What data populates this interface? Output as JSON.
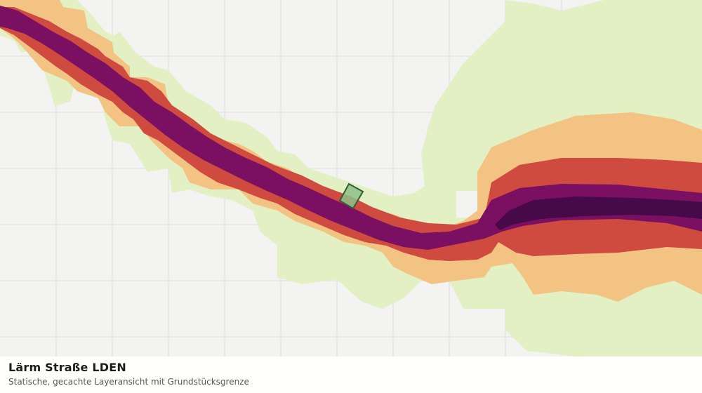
{
  "legend": {
    "title": "Lärm Straße LDEN",
    "subtitle": "Statische, gecachte Layeransicht mit Grundstücksgrenze"
  },
  "colors": {
    "background": "#f3f4f2",
    "grid": "#dcdedb",
    "band_outer": "#e2f0c4",
    "band_orange": "#f3c384",
    "band_red": "#cf4a3f",
    "band_purple": "#7b0f62",
    "band_darkest": "#450a47",
    "parcel_fill": "#8fbf88",
    "parcel_stroke": "#2f5d35"
  },
  "icons": {
    "parcel": "parcel-polygon"
  }
}
